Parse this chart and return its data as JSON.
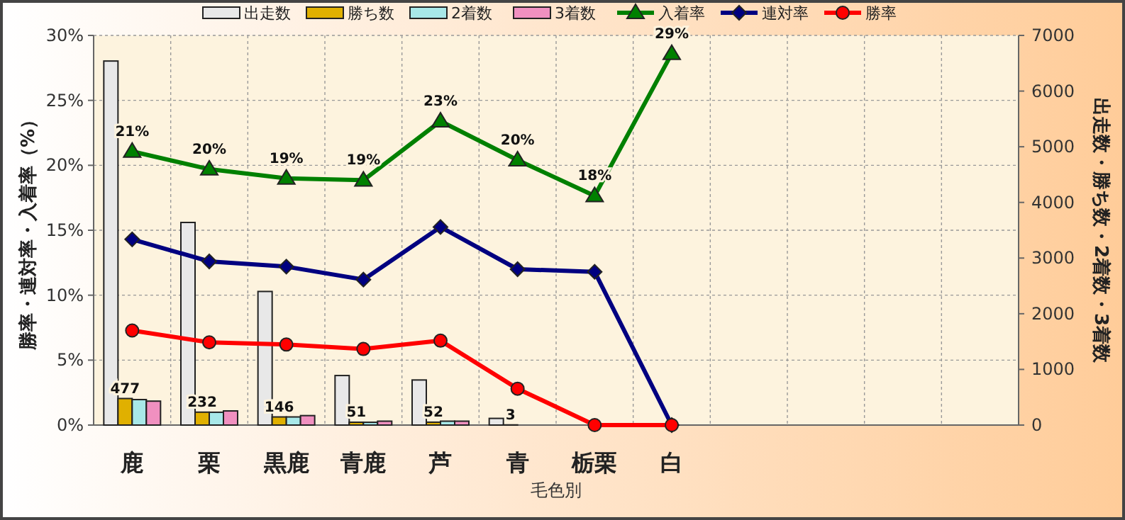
{
  "chart_data": {
    "type": "bar",
    "categories": [
      "鹿",
      "栗",
      "黒鹿",
      "青鹿",
      "芦",
      "青",
      "栃栗",
      "白",
      null,
      null,
      null,
      null
    ],
    "xlabel": "毛色別",
    "ylabel": "勝率・連対率・入着率（%）",
    "y2label": "出走数・勝ち数・2着数・3着数",
    "ylim": [
      0,
      30
    ],
    "yticks": [
      {
        "value": 0,
        "label": "0%"
      },
      {
        "value": 5,
        "label": "5%"
      },
      {
        "value": 10,
        "label": "10%"
      },
      {
        "value": 15,
        "label": "15%"
      },
      {
        "value": 20,
        "label": "20%"
      },
      {
        "value": 25,
        "label": "25%"
      },
      {
        "value": 30,
        "label": "30%"
      }
    ],
    "y2lim": [
      0,
      7000
    ],
    "y2ticks": [
      0,
      1000,
      2000,
      3000,
      4000,
      5000,
      6000,
      7000
    ],
    "grid": true,
    "legend": "top",
    "series": [
      {
        "name": "出走数",
        "type": "bar",
        "axis": "y2",
        "color": "#e8e8e8",
        "values": [
          6540,
          3640,
          2400,
          890,
          810,
          120,
          null,
          null,
          null,
          null,
          null,
          null
        ]
      },
      {
        "name": "勝ち数",
        "type": "bar",
        "axis": "y2",
        "color": "#e0b000",
        "values": [
          477,
          232,
          146,
          51,
          52,
          3,
          0,
          0,
          null,
          null,
          null,
          null
        ],
        "value_labels": [
          "477",
          "232",
          "146",
          "51",
          "52",
          "3",
          null,
          null,
          null,
          null,
          null,
          null
        ]
      },
      {
        "name": "2着数",
        "type": "bar",
        "axis": "y2",
        "color": "#a8e8e8",
        "values": [
          458,
          230,
          146,
          50,
          70,
          null,
          null,
          0,
          null,
          null,
          null,
          null
        ]
      },
      {
        "name": "3着数",
        "type": "bar",
        "axis": "y2",
        "color": "#f090c0",
        "values": [
          430,
          254,
          170,
          70,
          70,
          null,
          null,
          null,
          null,
          null,
          null,
          null
        ]
      },
      {
        "name": "入着率",
        "type": "line",
        "marker": "triangle",
        "color": "#008000",
        "values": [
          21.07,
          19.7,
          19.0,
          18.85,
          23.4,
          20.4,
          17.65,
          28.6,
          null,
          null,
          null,
          null
        ],
        "value_labels": [
          "21%",
          "20%",
          "19%",
          "19%",
          "23%",
          "20%",
          "18%",
          "29%",
          null,
          null,
          null,
          null
        ]
      },
      {
        "name": "連対率",
        "type": "line",
        "marker": "diamond",
        "color": "#000080",
        "values": [
          14.3,
          12.6,
          12.2,
          11.2,
          15.25,
          12.0,
          11.8,
          0,
          null,
          null,
          null,
          null
        ]
      },
      {
        "name": "勝率",
        "type": "line",
        "marker": "circle",
        "color": "#ff0000",
        "values": [
          7.28,
          6.37,
          6.2,
          5.86,
          6.5,
          2.8,
          0,
          0,
          null,
          null,
          null,
          null
        ]
      }
    ]
  }
}
